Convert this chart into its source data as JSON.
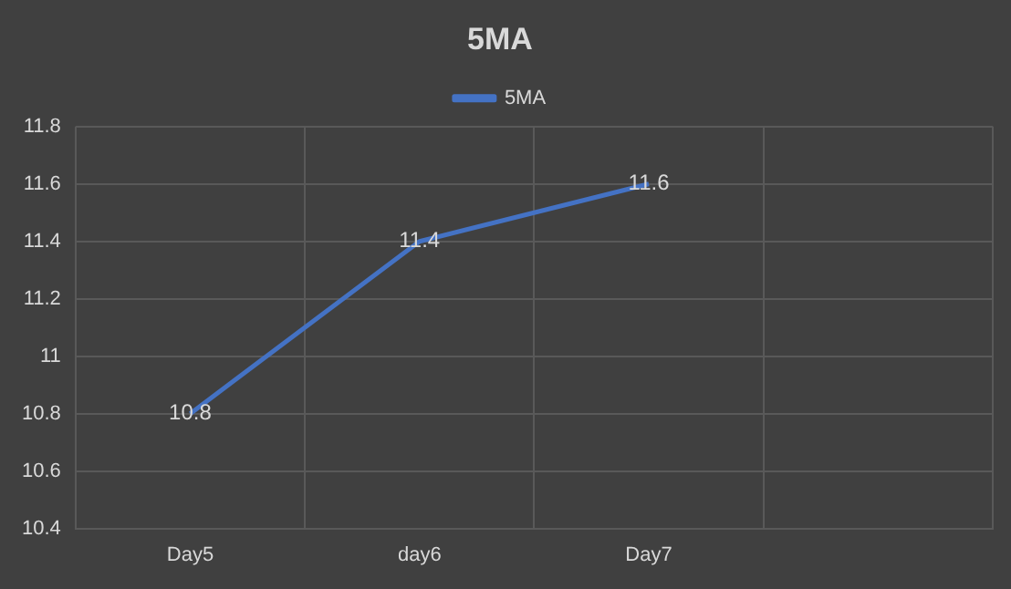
{
  "chart_data": {
    "type": "line",
    "title": "5MA",
    "categories": [
      "Day5",
      "day6",
      "Day7",
      null
    ],
    "series": [
      {
        "name": "5MA",
        "color": "#4472c4",
        "values": [
          10.8,
          11.4,
          11.6,
          null
        ]
      }
    ],
    "ylim": [
      10.4,
      11.8
    ],
    "yticks": [
      10.4,
      10.6,
      10.8,
      11,
      11.2,
      11.4,
      11.6,
      11.8
    ],
    "grid": true,
    "legend": "top",
    "data_labels": true,
    "marker": "none",
    "line_style": "solid"
  }
}
